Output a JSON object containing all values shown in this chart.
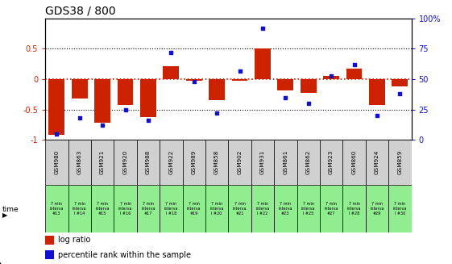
{
  "title": "GDS38 / 800",
  "samples": [
    "GSM980",
    "GSM863",
    "GSM921",
    "GSM920",
    "GSM988",
    "GSM922",
    "GSM989",
    "GSM858",
    "GSM902",
    "GSM931",
    "GSM861",
    "GSM862",
    "GSM923",
    "GSM860",
    "GSM924",
    "GSM859"
  ],
  "time_row1": [
    "7 min",
    "7 min",
    "7 min",
    "7 min",
    "7 min",
    "7 min",
    "7 min",
    "7 min",
    "7 min",
    "7 min",
    "7 min",
    "7 min",
    "7 min",
    "7 min",
    "7 min",
    "7 min"
  ],
  "time_row2": [
    "interva",
    "interva",
    "interva",
    "interva",
    "interva",
    "interva",
    "interva",
    "interva",
    "interva",
    "interva",
    "interva",
    "interva",
    "interva",
    "interva",
    "interva",
    "interva"
  ],
  "time_row3": [
    "#13",
    "l #14",
    "#15",
    "l #16",
    "#17",
    "l #18",
    "#19",
    "l #20",
    "#21",
    "l #22",
    "#23",
    "l #25",
    "#27",
    "l #28",
    "#29",
    "l #30"
  ],
  "log_ratio": [
    -0.92,
    -0.32,
    -0.72,
    -0.42,
    -0.62,
    0.22,
    -0.02,
    -0.35,
    -0.02,
    0.5,
    -0.18,
    -0.22,
    0.05,
    0.18,
    -0.42,
    -0.12
  ],
  "percentile": [
    5,
    18,
    12,
    25,
    16,
    72,
    48,
    22,
    57,
    92,
    35,
    30,
    53,
    62,
    20,
    38
  ],
  "bar_color": "#cc2200",
  "dot_color": "#1111cc",
  "zero_line_color": "#cc2200",
  "grid_color": "#555555",
  "ylim": [
    -1.0,
    1.0
  ],
  "y2lim": [
    0,
    100
  ],
  "yticks": [
    -1.0,
    -0.5,
    0.0,
    0.5
  ],
  "ytick_labels": [
    "-1",
    "-0.5",
    "0",
    "0.5"
  ],
  "y2ticks": [
    0,
    25,
    50,
    75,
    100
  ],
  "y2tick_labels": [
    "0",
    "25",
    "50",
    "75",
    "100%"
  ],
  "bg_color_gray": "#d0d0d0",
  "bg_color_green": "#90ee90",
  "title_fontsize": 10,
  "legend_dot_color": "#1111cc",
  "legend_bar_color": "#cc2200",
  "n": 16
}
